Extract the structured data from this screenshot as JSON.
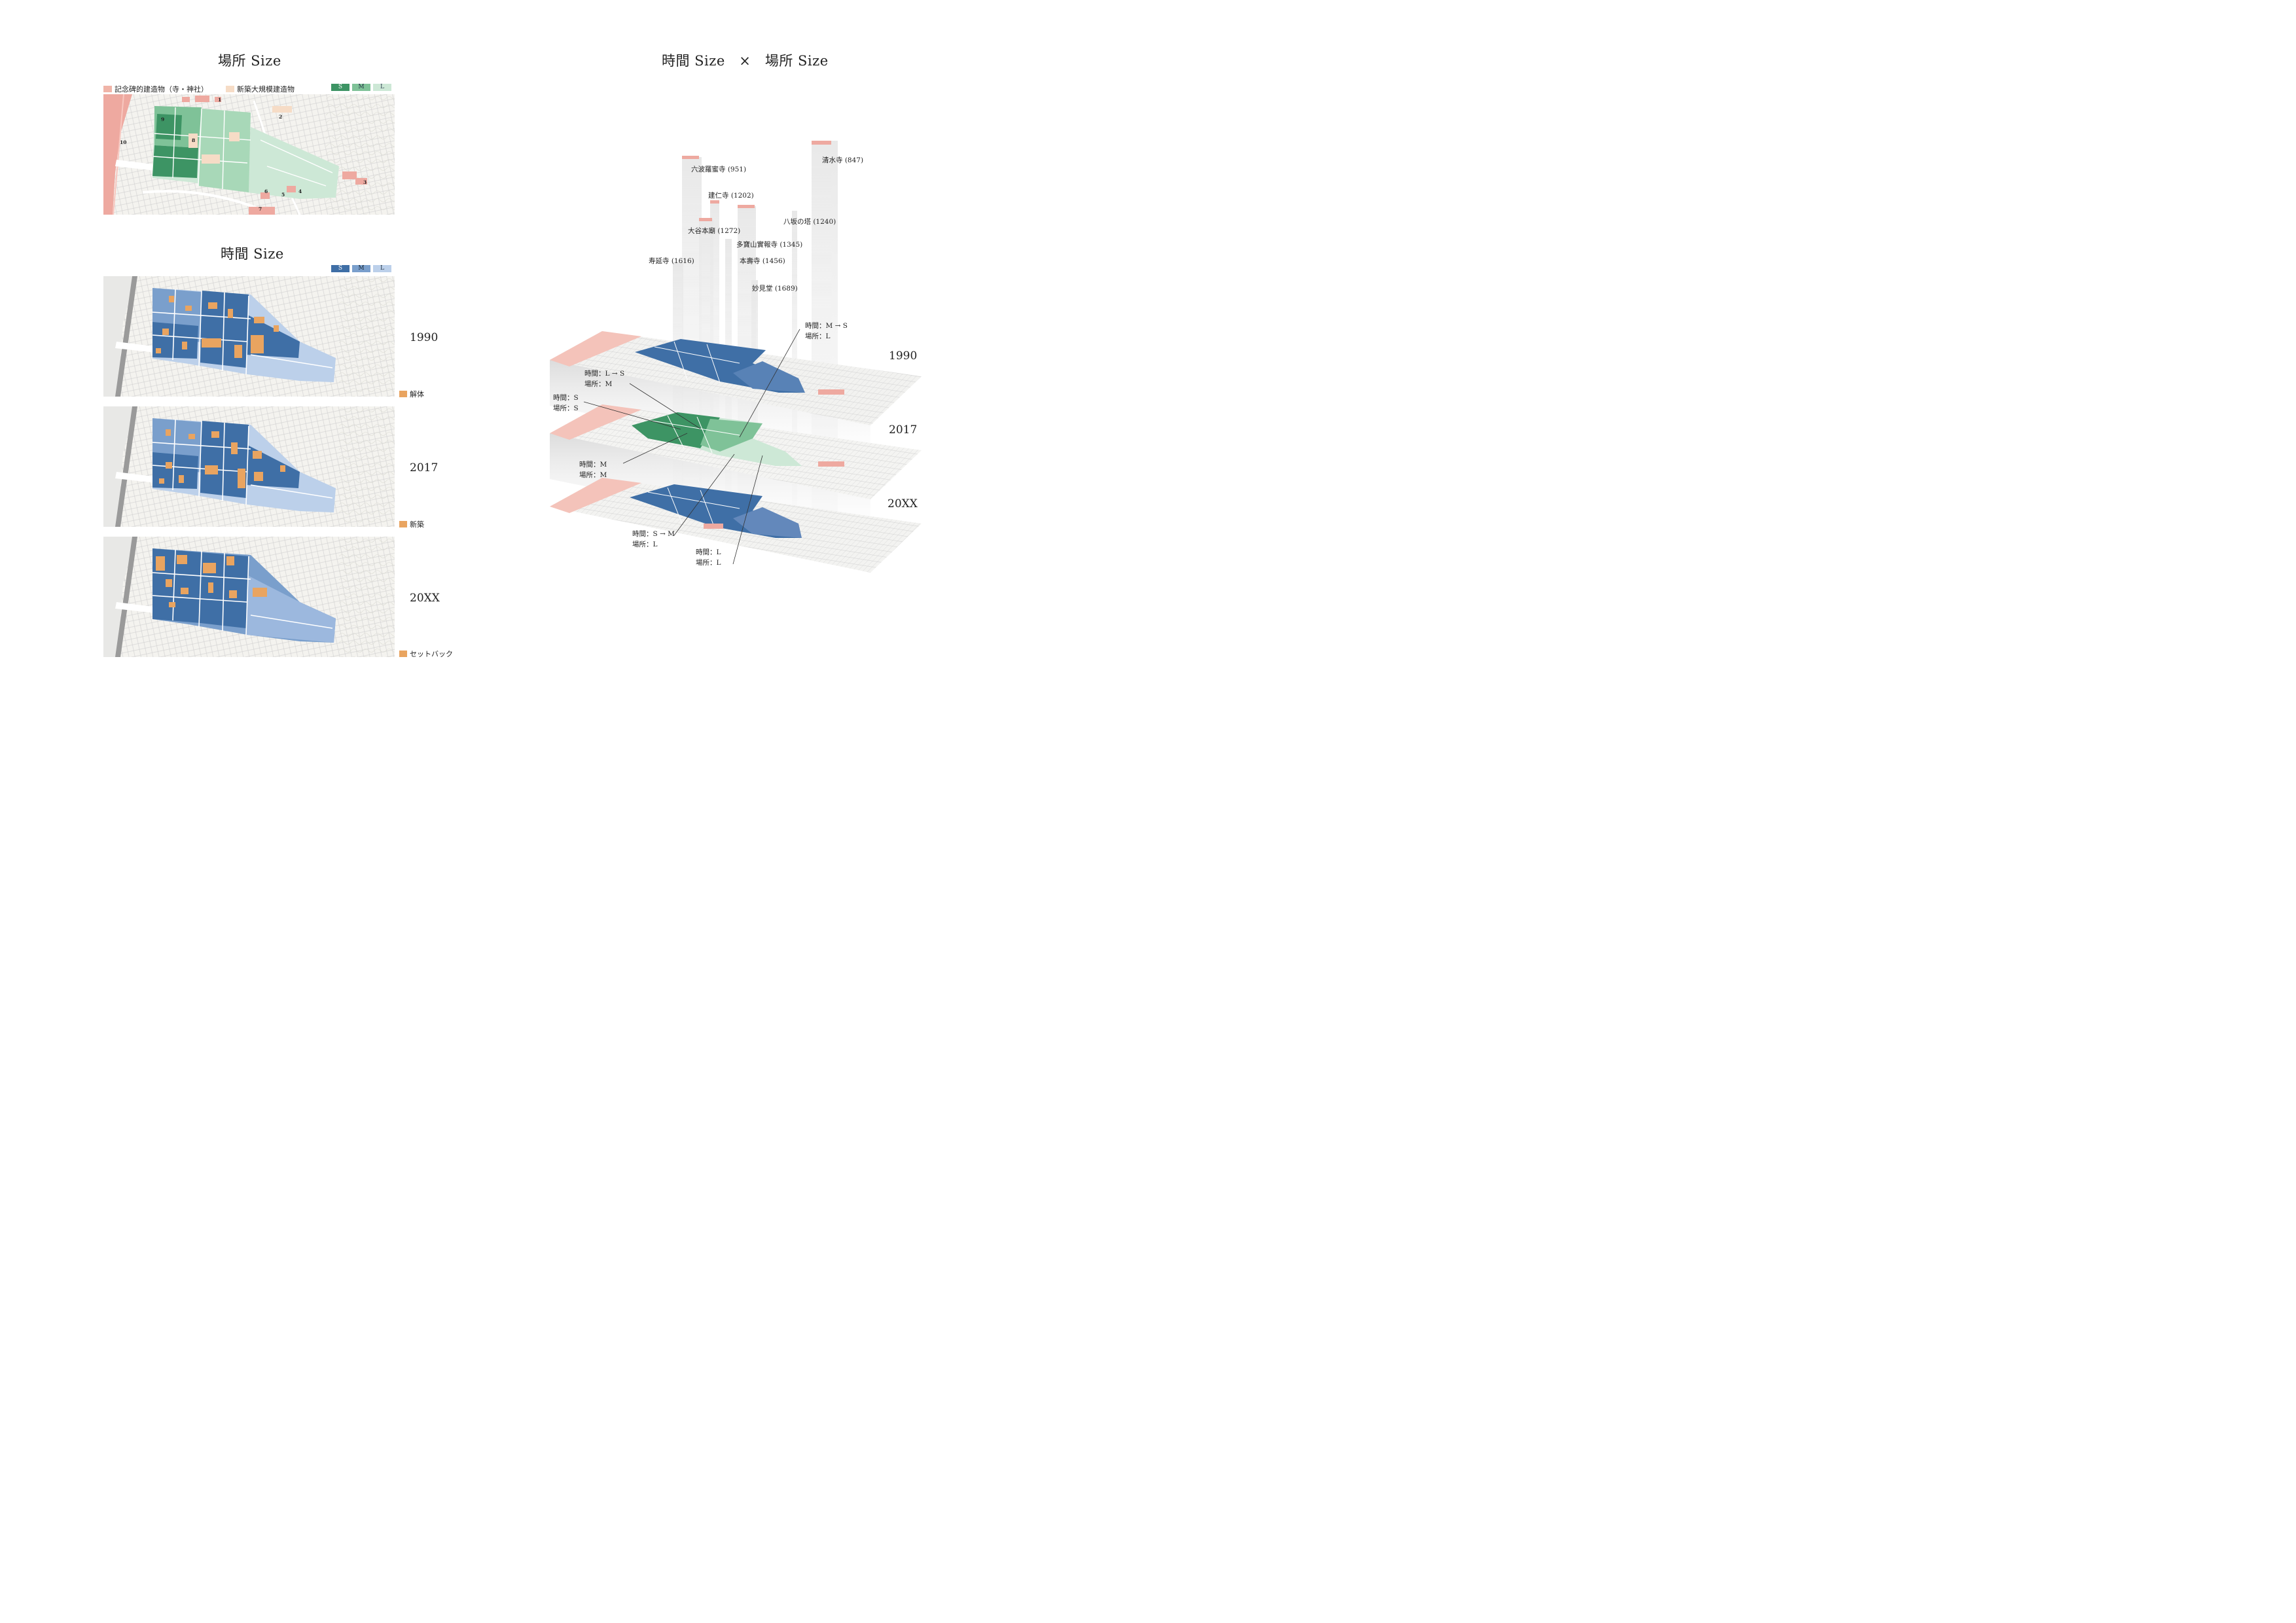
{
  "left": {
    "place_title": "場所 Size",
    "time_title": "時間 Size",
    "legend": {
      "monument_label": "記念碑的建造物（寺・神社）",
      "monument_color": "#f0b4a8",
      "new_large_label": "新築大規模建造物",
      "new_large_color": "#f6dcc6",
      "green_scale": [
        {
          "label": "S",
          "color": "#3d9464"
        },
        {
          "label": "M",
          "color": "#7fc298"
        },
        {
          "label": "L",
          "color": "#cde8d6"
        }
      ],
      "blue_scale": [
        {
          "label": "S",
          "color": "#3f6fa6"
        },
        {
          "label": "M",
          "color": "#7a9fcc"
        },
        {
          "label": "L",
          "color": "#bcd0ea"
        }
      ]
    },
    "map_numbers": [
      "1",
      "2",
      "3",
      "4",
      "5",
      "6",
      "7",
      "8",
      "9",
      "10"
    ],
    "timeline": [
      {
        "year": "1990",
        "note": "解体"
      },
      {
        "year": "2017",
        "note": "新築"
      },
      {
        "year": "20XX",
        "note": "セットバック"
      }
    ],
    "note_color": "#e9a460"
  },
  "right": {
    "title": "時間 Size　×　場所 Size",
    "years": [
      "1990",
      "2017",
      "20XX"
    ],
    "temples": [
      {
        "name": "清水寺 (847)"
      },
      {
        "name": "六波羅蜜寺 (951)"
      },
      {
        "name": "建仁寺 (1202)"
      },
      {
        "name": "八坂の塔 (1240)"
      },
      {
        "name": "大谷本廟 (1272)"
      },
      {
        "name": "多寶山實報寺 (1345)"
      },
      {
        "name": "本壽寺 (1456)"
      },
      {
        "name": "寿延寺 (1616)"
      },
      {
        "name": "妙見堂 (1689)"
      }
    ],
    "callouts": [
      {
        "time": "時間：M → S",
        "place": "場所：L"
      },
      {
        "time": "時間：L → S",
        "place": "場所：M"
      },
      {
        "time": "時間：S",
        "place": "場所：S"
      },
      {
        "time": "時間：M",
        "place": "場所：M"
      },
      {
        "time": "時間：S → M",
        "place": "場所：L"
      },
      {
        "time": "時間：L",
        "place": "場所：L"
      }
    ]
  }
}
